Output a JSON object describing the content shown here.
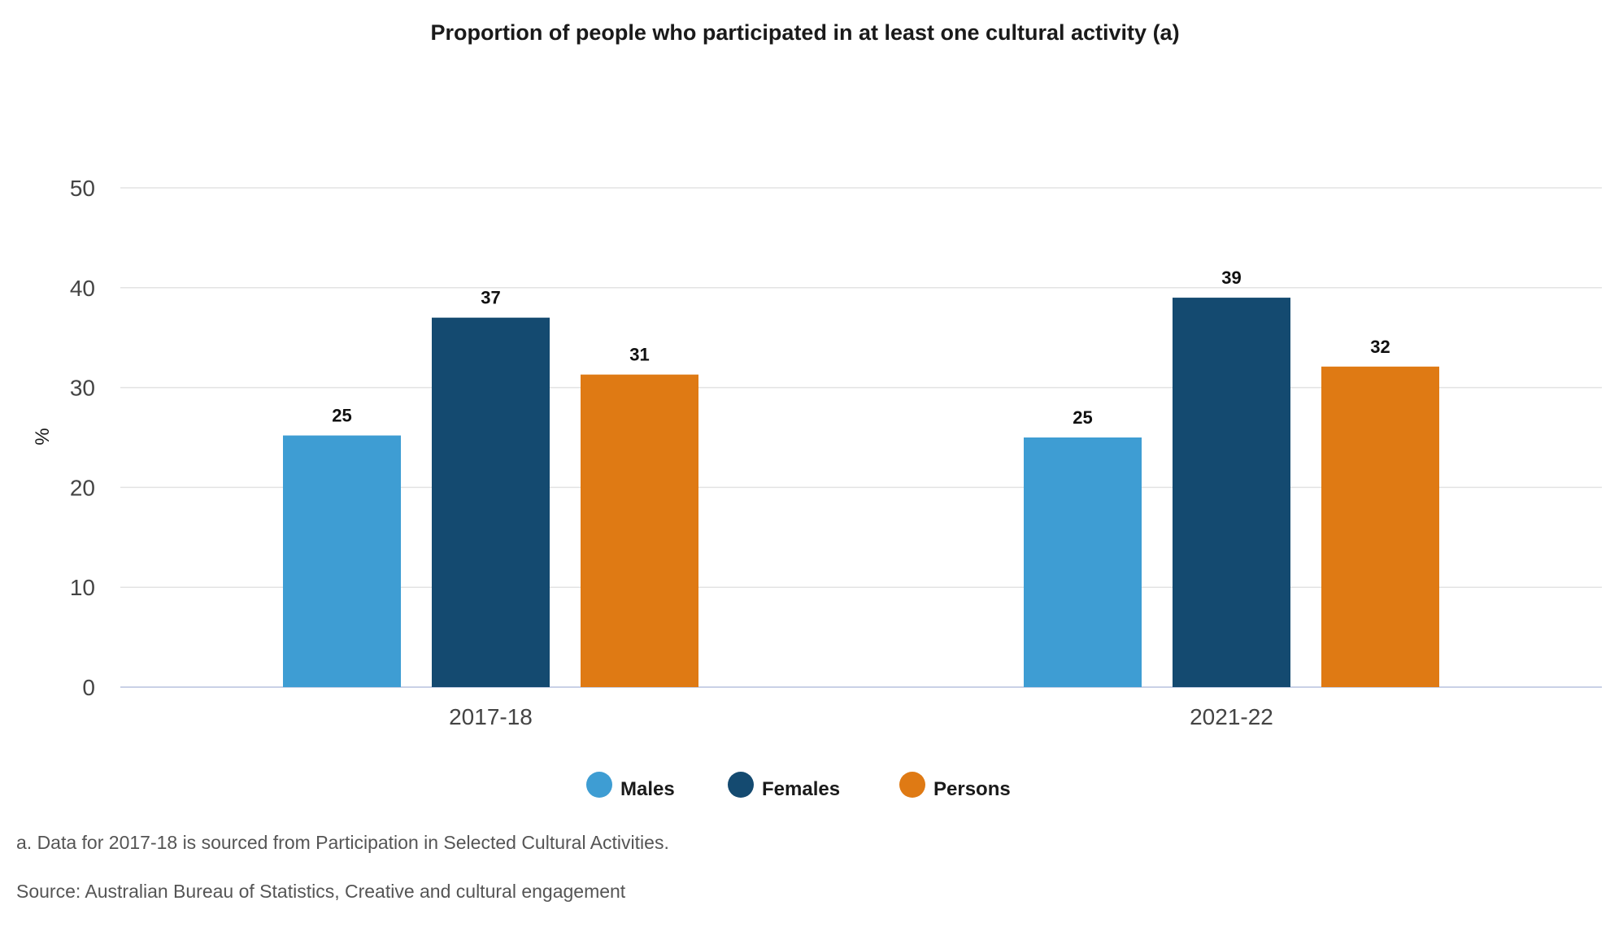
{
  "chart_data": {
    "type": "bar",
    "title": "Proportion of people who participated in at least one cultural activity (a)",
    "xlabel": "",
    "ylabel": "%",
    "ylim": [
      0,
      50
    ],
    "yticks": [
      0,
      10,
      20,
      30,
      40,
      50
    ],
    "categories": [
      "2017-18",
      "2021-22"
    ],
    "series": [
      {
        "name": "Males",
        "color": "#3e9dd3",
        "values": [
          25,
          25
        ]
      },
      {
        "name": "Females",
        "color": "#144a70",
        "values": [
          37,
          39
        ]
      },
      {
        "name": "Persons",
        "color": "#df7a14",
        "values": [
          31,
          32
        ]
      }
    ],
    "bar_values_plotted": [
      [
        25.2,
        25.0
      ],
      [
        37.0,
        39.0
      ],
      [
        31.3,
        32.1
      ]
    ],
    "grid": true,
    "legend": "bottom-center"
  },
  "footnotes": {
    "note_a": "a. Data for 2017-18 is sourced from Participation in Selected Cultural Activities.",
    "source": "Source: Australian Bureau of Statistics, Creative and cultural engagement"
  }
}
